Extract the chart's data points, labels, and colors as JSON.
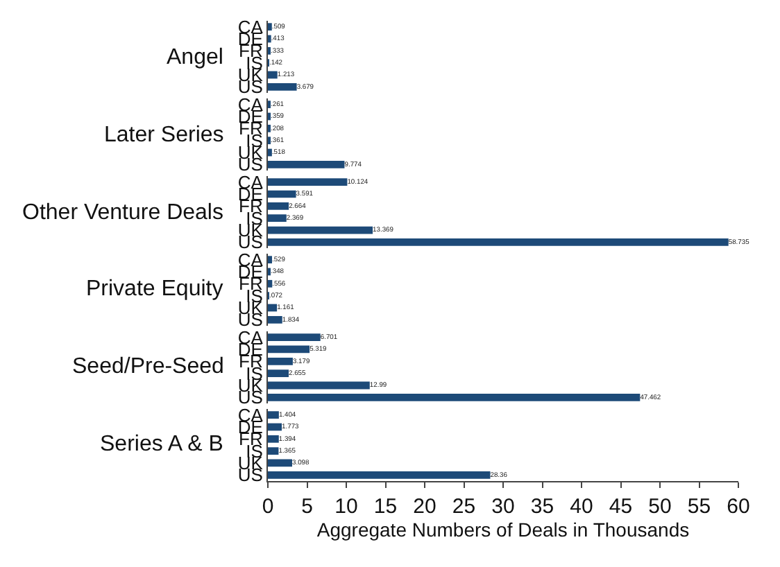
{
  "chart_data": [
    {
      "type": "bar",
      "orientation": "horizontal",
      "title": "Angel",
      "categories": [
        "CA",
        "DE",
        "FR",
        "IS",
        "UK",
        "US"
      ],
      "values": [
        0.509,
        0.413,
        0.333,
        0.142,
        1.213,
        3.679
      ],
      "value_labels": [
        ".509",
        ".413",
        ".333",
        ".142",
        "1.213",
        "3.679"
      ],
      "color": "#1d4a78",
      "xlim": [
        0,
        60
      ],
      "xticks": [
        0,
        5,
        10,
        15,
        20,
        25,
        30,
        35,
        40,
        45,
        50,
        55,
        60
      ],
      "tick_labels": "y"
    },
    {
      "type": "bar",
      "orientation": "horizontal",
      "title": "Later Series",
      "categories": [
        "CA",
        "DE",
        "FR",
        "IS",
        "UK",
        "US"
      ],
      "values": [
        0.261,
        0.359,
        0.208,
        0.361,
        0.518,
        9.774
      ],
      "value_labels": [
        ".261",
        ".359",
        ".208",
        ".361",
        ".518",
        "9.774"
      ],
      "color": "#1d4a78",
      "xlim": [
        0,
        60
      ],
      "xticks": [
        0,
        5,
        10,
        15,
        20,
        25,
        30,
        35,
        40,
        45,
        50,
        55,
        60
      ],
      "tick_labels": "y"
    },
    {
      "type": "bar",
      "orientation": "horizontal",
      "title": "Other Venture Deals",
      "categories": [
        "CA",
        "DE",
        "FR",
        "IS",
        "UK",
        "US"
      ],
      "values": [
        10.124,
        3.591,
        2.664,
        2.369,
        13.369,
        58.735
      ],
      "value_labels": [
        "10.124",
        "3.591",
        "2.664",
        "2.369",
        "13.369",
        "58.735"
      ],
      "color": "#1d4a78",
      "xlim": [
        0,
        60
      ],
      "xticks": [
        0,
        5,
        10,
        15,
        20,
        25,
        30,
        35,
        40,
        45,
        50,
        55,
        60
      ],
      "tick_labels": "y"
    },
    {
      "type": "bar",
      "orientation": "horizontal",
      "title": "Private Equity",
      "categories": [
        "CA",
        "DE",
        "FR",
        "IS",
        "UK",
        "US"
      ],
      "values": [
        0.529,
        0.348,
        0.556,
        0.072,
        1.161,
        1.834
      ],
      "value_labels": [
        ".529",
        ".348",
        ".556",
        ".072",
        "1.161",
        "1.834"
      ],
      "color": "#1d4a78",
      "xlim": [
        0,
        60
      ],
      "xticks": [
        0,
        5,
        10,
        15,
        20,
        25,
        30,
        35,
        40,
        45,
        50,
        55,
        60
      ],
      "tick_labels": "y"
    },
    {
      "type": "bar",
      "orientation": "horizontal",
      "title": "Seed/Pre-Seed",
      "categories": [
        "CA",
        "DE",
        "FR",
        "IS",
        "UK",
        "US"
      ],
      "values": [
        6.701,
        5.319,
        3.179,
        2.655,
        12.99,
        47.462
      ],
      "value_labels": [
        "6.701",
        "5.319",
        "3.179",
        "2.655",
        "12.99",
        "47.462"
      ],
      "color": "#1d4a78",
      "xlim": [
        0,
        60
      ],
      "xticks": [
        0,
        5,
        10,
        15,
        20,
        25,
        30,
        35,
        40,
        45,
        50,
        55,
        60
      ],
      "tick_labels": "y"
    },
    {
      "type": "bar",
      "orientation": "horizontal",
      "title": "Series A & B",
      "xlabel": "Aggregate Numbers of Deals in Thousands",
      "categories": [
        "CA",
        "DE",
        "FR",
        "IS",
        "UK",
        "US"
      ],
      "values": [
        1.404,
        1.773,
        1.394,
        1.365,
        3.098,
        28.36
      ],
      "value_labels": [
        "1.404",
        "1.773",
        "1.394",
        "1.365",
        "3.098",
        "28.36"
      ],
      "color": "#1d4a78",
      "xlim": [
        0,
        60
      ],
      "xticks": [
        0,
        5,
        10,
        15,
        20,
        25,
        30,
        35,
        40,
        45,
        50,
        55,
        60
      ]
    }
  ]
}
